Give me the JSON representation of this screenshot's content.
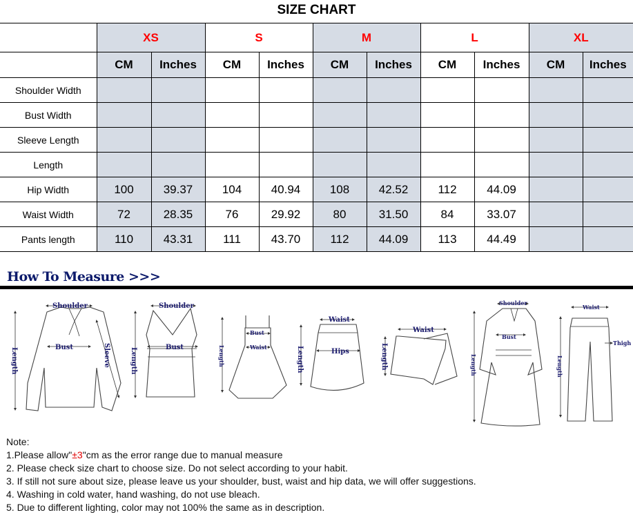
{
  "title": "SIZE CHART",
  "sizes": [
    {
      "label": "XS",
      "shaded": true
    },
    {
      "label": "S",
      "shaded": false
    },
    {
      "label": "M",
      "shaded": true
    },
    {
      "label": "L",
      "shaded": false
    },
    {
      "label": "XL",
      "shaded": true
    }
  ],
  "units": {
    "cm": "CM",
    "inches": "Inches"
  },
  "rows": [
    {
      "label": "Shoulder Width",
      "values": [
        "",
        "",
        "",
        "",
        "",
        "",
        "",
        "",
        "",
        ""
      ]
    },
    {
      "label": "Bust Width",
      "values": [
        "",
        "",
        "",
        "",
        "",
        "",
        "",
        "",
        "",
        ""
      ]
    },
    {
      "label": "Sleeve Length",
      "values": [
        "",
        "",
        "",
        "",
        "",
        "",
        "",
        "",
        "",
        ""
      ]
    },
    {
      "label": "Length",
      "values": [
        "",
        "",
        "",
        "",
        "",
        "",
        "",
        "",
        "",
        ""
      ]
    },
    {
      "label": "Hip Width",
      "values": [
        "100",
        "39.37",
        "104",
        "40.94",
        "108",
        "42.52",
        "112",
        "44.09",
        "",
        ""
      ]
    },
    {
      "label": "Waist Width",
      "values": [
        "72",
        "28.35",
        "76",
        "29.92",
        "80",
        "31.50",
        "84",
        "33.07",
        "",
        ""
      ]
    },
    {
      "label": "Pants length",
      "values": [
        "110",
        "43.31",
        "111",
        "43.70",
        "112",
        "44.09",
        "113",
        "44.49",
        "",
        ""
      ]
    }
  ],
  "colors": {
    "size_label": "#ff0000",
    "shaded_column": "#d6dce5",
    "heading": "#0c1a6b"
  },
  "how_to_measure": {
    "heading": "How To Measure >>>",
    "figures": {
      "blouse": {
        "shoulder": "Shoulder",
        "bust": "Bust",
        "sleeve": "Sleeve",
        "length": "Length"
      },
      "vest": {
        "shoulder": "Shoulder",
        "bust": "Bust",
        "length": "Length"
      },
      "dress": {
        "bust": "Bust",
        "waist": "Waist",
        "length": "Length"
      },
      "skirt": {
        "waist": "Waist",
        "hips": "Hips",
        "length": "Length"
      },
      "shorts": {
        "waist": "Waist",
        "length": "Length"
      },
      "coat": {
        "shoulder": "Shoulder",
        "bust": "Bust",
        "length": "Length"
      },
      "pants": {
        "waist": "Waist",
        "thigh": "Thigh",
        "length": "Length"
      }
    }
  },
  "notes": {
    "heading": "Note:",
    "n1_pre": "1.Please allow\"",
    "n1_red": "±3",
    "n1_post": "\"cm as the error range due to manual measure",
    "n2": "2. Please check size chart to choose size. Do not select according to your habit.",
    "n3": "3. If still not sure about size, please leave us your shoulder, bust, waist and hip data, we will offer suggestions.",
    "n4": "4. Washing in cold water, hand washing, do not use bleach.",
    "n5": "5. Due to different lighting, color may not 100% the same as in description."
  }
}
